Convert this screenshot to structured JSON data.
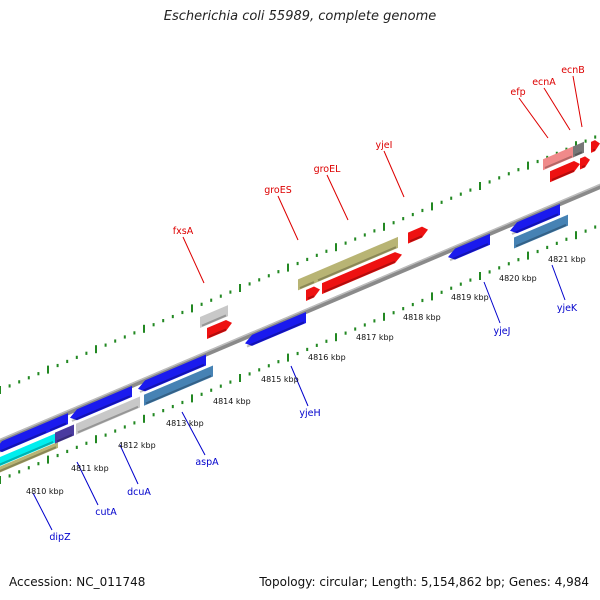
{
  "title": "Escherichia coli 55989, complete genome",
  "footer": {
    "accession": "Accession: NC_011748",
    "summary": "Topology: circular; Length: 5,154,862 bp; Genes: 4,984"
  },
  "colors": {
    "forward_label": "#dd0000",
    "reverse_label": "#0000cc",
    "backbone": "#888888",
    "tick": "#228822"
  },
  "kbp_labels": [
    "4810 kbp",
    "4811 kbp",
    "4812 kbp",
    "4813 kbp",
    "4814 kbp",
    "4815 kbp",
    "4816 kbp",
    "4817 kbp",
    "4818 kbp",
    "4819 kbp",
    "4820 kbp",
    "4821 kbp"
  ],
  "forward_gene_labels": [
    "fxsA",
    "groES",
    "groEL",
    "yjeI",
    "efp",
    "ecnA",
    "ecnB"
  ],
  "reverse_gene_labels": [
    "dipZ",
    "cutA",
    "dcuA",
    "aspA",
    "yjeH",
    "yjeJ",
    "yjeK"
  ]
}
